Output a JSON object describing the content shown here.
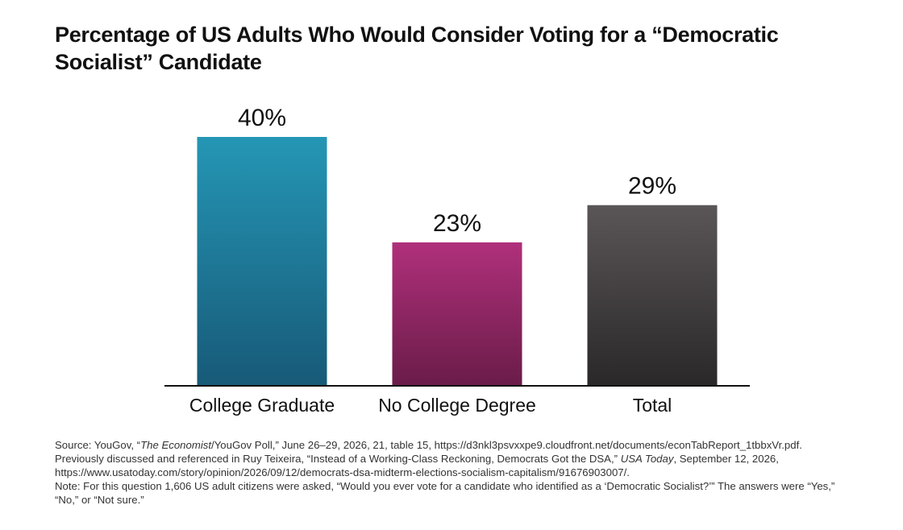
{
  "chart_data": {
    "type": "bar",
    "title_line1": "Percentage of US Adults Who Would Consider Voting for a “Democratic",
    "title_line2": "Socialist” Candidate",
    "categories": [
      "College Graduate",
      "No College Degree",
      "Total"
    ],
    "values": [
      40,
      23,
      29
    ],
    "value_labels": [
      "40%",
      "23%",
      "29%"
    ],
    "ylim": [
      0,
      50
    ],
    "grid": false,
    "legend": "none",
    "colors": [
      {
        "top": "#2596b5",
        "bottom": "#175a78"
      },
      {
        "top": "#b0307b",
        "bottom": "#6a1c49"
      },
      {
        "top": "#5a5657",
        "bottom": "#2b2829"
      }
    ]
  },
  "notes": {
    "source_prefix": "Source: YouGov, “",
    "source_italic": "The Economist",
    "source_rest": "/YouGov Poll,” June 26–29, 2026, 21, table 15, https://d3nkl3psvxxpe9.cloudfront.net/documents/econTabReport_1tbbxVr.pdf.",
    "previous_prefix": "Previously discussed and referenced in Ruy Teixeira, “Instead of a Working-Class Reckoning, Democrats Got the DSA,” ",
    "previous_italic": "USA Today",
    "previous_rest": ", September 12, 2026,",
    "url_line": "https://www.usatoday.com/story/opinion/2026/09/12/democrats-dsa-midterm-elections-socialism-capitalism/91676903007/.",
    "note_line1": "Note: For this question 1,606 US adult citizens were asked, “Would you ever vote for a candidate who identified as a ‘Democratic Socialist?’” The answers were “Yes,”",
    "note_line2": "“No,” or “Not sure.”"
  }
}
